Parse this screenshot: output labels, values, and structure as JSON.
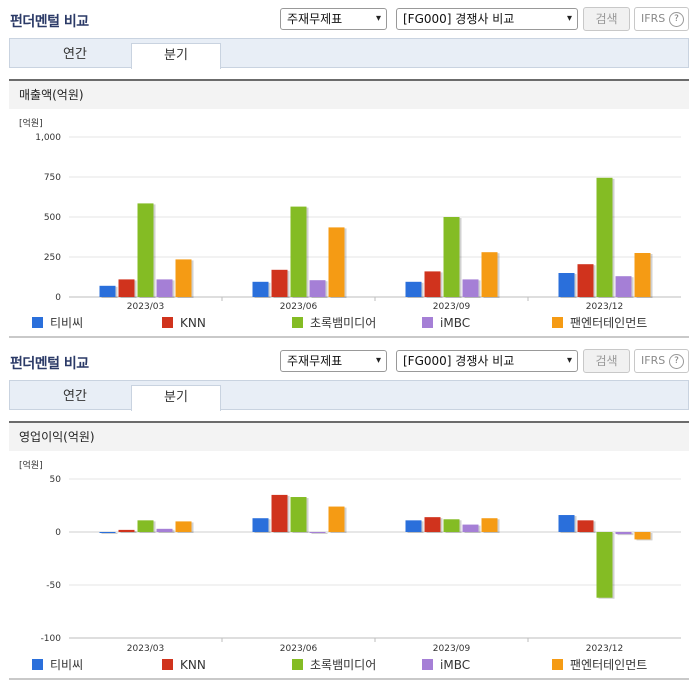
{
  "panels": [
    {
      "title": "펀더멘털 비교",
      "select1": "주재무제표",
      "select2": "[FG000] 경쟁사 비교",
      "search_label": "검색",
      "ifrs_label": "IFRS",
      "help_glyph": "?",
      "tabs": [
        "연간",
        "분기"
      ],
      "active_tab": "분기",
      "section_title": "매출액(억원)"
    },
    {
      "title": "펀더멘털 비교",
      "select1": "주재무제표",
      "select2": "[FG000] 경쟁사 비교",
      "search_label": "검색",
      "ifrs_label": "IFRS",
      "help_glyph": "?",
      "tabs": [
        "연간",
        "분기"
      ],
      "active_tab": "분기",
      "section_title": "영업이익(억원)"
    }
  ],
  "chart_data": [
    {
      "type": "bar",
      "unit_label": "[억원]",
      "categories": [
        "2023/03",
        "2023/06",
        "2023/09",
        "2023/12"
      ],
      "yticks": [
        "1,000",
        "750",
        "500",
        "250",
        "0"
      ],
      "ylim": [
        0,
        1000
      ],
      "grid": true,
      "legend_position": "bottom",
      "series": [
        {
          "name": "티비씨",
          "color": "#2a6fdb",
          "values": [
            70,
            95,
            95,
            150
          ]
        },
        {
          "name": "KNN",
          "color": "#d0331d",
          "values": [
            110,
            170,
            160,
            205
          ]
        },
        {
          "name": "초록뱀미디어",
          "color": "#84bc24",
          "values": [
            585,
            565,
            500,
            745
          ]
        },
        {
          "name": "iMBC",
          "color": "#a57fd6",
          "values": [
            110,
            105,
            110,
            130
          ]
        },
        {
          "name": "팬엔터테인먼트",
          "color": "#f59b14",
          "values": [
            235,
            435,
            280,
            275
          ]
        }
      ]
    },
    {
      "type": "bar",
      "unit_label": "[억원]",
      "categories": [
        "2023/03",
        "2023/06",
        "2023/09",
        "2023/12"
      ],
      "yticks": [
        "50",
        "0",
        "-50",
        "-100"
      ],
      "ylim": [
        -100,
        50
      ],
      "grid": true,
      "legend_position": "bottom",
      "series": [
        {
          "name": "티비씨",
          "color": "#2a6fdb",
          "values": [
            0,
            13,
            11,
            16
          ]
        },
        {
          "name": "KNN",
          "color": "#d0331d",
          "values": [
            2,
            35,
            14,
            11
          ]
        },
        {
          "name": "초록뱀미디어",
          "color": "#84bc24",
          "values": [
            11,
            33,
            12,
            -62
          ]
        },
        {
          "name": "iMBC",
          "color": "#a57fd6",
          "values": [
            3,
            0,
            7,
            -2
          ]
        },
        {
          "name": "팬엔터테인먼트",
          "color": "#f59b14",
          "values": [
            10,
            24,
            13,
            -7
          ]
        }
      ]
    }
  ]
}
